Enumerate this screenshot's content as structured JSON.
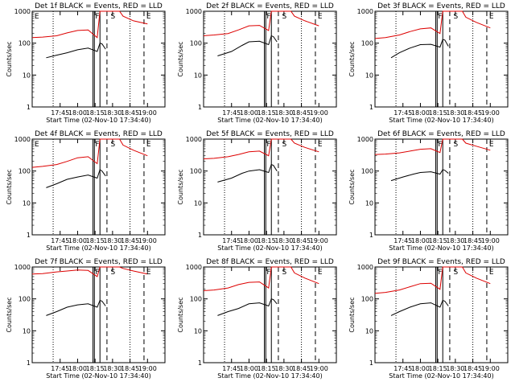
{
  "colors": {
    "events": "#000000",
    "lld": "#dd0000"
  },
  "chart_data": [
    {
      "type": "line",
      "title": "Det 1f BLACK = Events, RED = LLD",
      "xlabel": "Start Time (02-Nov-10 17:34:40)",
      "ylabel": "Counts/sec",
      "yscale": "log",
      "ylim": [
        1,
        1000
      ],
      "x_ticks": [
        "17:45",
        "18:00",
        "18:15",
        "18:30",
        "18:45",
        "19:00"
      ],
      "y_ticks": [
        "1",
        "10",
        "100",
        "1000"
      ],
      "flags": [
        "E",
        "F",
        "S",
        "E"
      ],
      "series": [
        {
          "name": "Events",
          "color": "#000000",
          "points": [
            [
              17.55,
              35
            ],
            [
              17.7,
              42
            ],
            [
              17.85,
              50
            ],
            [
              18.0,
              62
            ],
            [
              18.15,
              70
            ],
            [
              18.28,
              55
            ],
            [
              18.32,
              100
            ],
            [
              18.35,
              95
            ],
            [
              18.4,
              65
            ]
          ]
        },
        {
          "name": "LLD",
          "color": "#dd0000",
          "points": [
            [
              17.35,
              150
            ],
            [
              17.5,
              155
            ],
            [
              17.7,
              170
            ],
            [
              17.85,
              210
            ],
            [
              18.0,
              250
            ],
            [
              18.15,
              260
            ],
            [
              18.28,
              150
            ],
            [
              18.32,
              1000
            ],
            [
              18.6,
              1000
            ],
            [
              18.65,
              700
            ],
            [
              18.8,
              500
            ],
            [
              19.0,
              400
            ]
          ]
        }
      ]
    },
    {
      "type": "line",
      "title": "Det 2f BLACK = Events, RED = LLD",
      "xlabel": "Start Time (02-Nov-10 17:34:40)",
      "ylabel": "Counts/sec",
      "yscale": "log",
      "ylim": [
        1,
        1000
      ],
      "x_ticks": [
        "17:45",
        "18:00",
        "18:15",
        "18:30",
        "18:45",
        "19:00"
      ],
      "y_ticks": [
        "1",
        "10",
        "100",
        "1000"
      ],
      "flags": [
        "F",
        "S",
        "E"
      ],
      "series": [
        {
          "name": "Events",
          "color": "#000000",
          "points": [
            [
              17.55,
              40
            ],
            [
              17.75,
              55
            ],
            [
              17.9,
              85
            ],
            [
              18.0,
              110
            ],
            [
              18.15,
              115
            ],
            [
              18.28,
              90
            ],
            [
              18.32,
              170
            ],
            [
              18.35,
              160
            ],
            [
              18.4,
              110
            ]
          ]
        },
        {
          "name": "LLD",
          "color": "#dd0000",
          "points": [
            [
              17.35,
              170
            ],
            [
              17.5,
              180
            ],
            [
              17.7,
              200
            ],
            [
              17.85,
              260
            ],
            [
              18.0,
              350
            ],
            [
              18.15,
              360
            ],
            [
              18.28,
              250
            ],
            [
              18.32,
              1000
            ],
            [
              18.6,
              1000
            ],
            [
              18.65,
              700
            ],
            [
              18.8,
              500
            ],
            [
              19.0,
              350
            ]
          ]
        }
      ]
    },
    {
      "type": "line",
      "title": "Det 3f BLACK = Events, RED = LLD",
      "xlabel": "Start Time (02-Nov-10 17:34:40)",
      "ylabel": "Counts/sec",
      "yscale": "log",
      "ylim": [
        1,
        1000
      ],
      "x_ticks": [
        "17:45",
        "18:00",
        "18:15",
        "18:30",
        "18:45",
        "19:00"
      ],
      "y_ticks": [
        "1",
        "10",
        "100",
        "1000"
      ],
      "flags": [
        "F",
        "S",
        "E"
      ],
      "series": [
        {
          "name": "Events",
          "color": "#000000",
          "points": [
            [
              17.58,
              35
            ],
            [
              17.7,
              50
            ],
            [
              17.85,
              70
            ],
            [
              18.0,
              90
            ],
            [
              18.15,
              92
            ],
            [
              18.28,
              75
            ],
            [
              18.32,
              130
            ],
            [
              18.35,
              125
            ],
            [
              18.4,
              80
            ]
          ]
        },
        {
          "name": "LLD",
          "color": "#dd0000",
          "points": [
            [
              17.35,
              140
            ],
            [
              17.5,
              150
            ],
            [
              17.7,
              180
            ],
            [
              17.85,
              230
            ],
            [
              18.0,
              280
            ],
            [
              18.15,
              300
            ],
            [
              18.28,
              200
            ],
            [
              18.32,
              1000
            ],
            [
              18.6,
              1000
            ],
            [
              18.65,
              650
            ],
            [
              18.8,
              450
            ],
            [
              19.0,
              300
            ]
          ]
        }
      ]
    },
    {
      "type": "line",
      "title": "Det 4f BLACK = Events, RED = LLD",
      "xlabel": "Start Time (02-Nov-10 17:34:40)",
      "ylabel": "Counts/sec",
      "yscale": "log",
      "ylim": [
        1,
        1000
      ],
      "x_ticks": [
        "17:45",
        "18:00",
        "18:15",
        "18:30",
        "18:45",
        "19:00"
      ],
      "y_ticks": [
        "1",
        "10",
        "100",
        "1000"
      ],
      "flags": [
        "E",
        "F",
        "S",
        "E"
      ],
      "series": [
        {
          "name": "Events",
          "color": "#000000",
          "points": [
            [
              17.55,
              30
            ],
            [
              17.7,
              40
            ],
            [
              17.85,
              55
            ],
            [
              18.0,
              65
            ],
            [
              18.15,
              75
            ],
            [
              18.28,
              60
            ],
            [
              18.32,
              110
            ],
            [
              18.35,
              100
            ],
            [
              18.4,
              70
            ]
          ]
        },
        {
          "name": "LLD",
          "color": "#dd0000",
          "points": [
            [
              17.35,
              130
            ],
            [
              17.5,
              140
            ],
            [
              17.7,
              160
            ],
            [
              17.85,
              200
            ],
            [
              18.0,
              260
            ],
            [
              18.15,
              280
            ],
            [
              18.28,
              170
            ],
            [
              18.32,
              1000
            ],
            [
              18.6,
              1000
            ],
            [
              18.65,
              650
            ],
            [
              18.8,
              450
            ],
            [
              19.0,
              300
            ]
          ]
        }
      ]
    },
    {
      "type": "line",
      "title": "Det 5f BLACK = Events, RED = LLD",
      "xlabel": "Start Time (02-Nov-10 17:34:40)",
      "ylabel": "Counts/sec",
      "yscale": "log",
      "ylim": [
        1,
        1000
      ],
      "x_ticks": [
        "17:45",
        "18:00",
        "18:15",
        "18:30",
        "18:45",
        "19:00"
      ],
      "y_ticks": [
        "1",
        "10",
        "100",
        "1000"
      ],
      "flags": [
        "F",
        "S",
        "E"
      ],
      "series": [
        {
          "name": "Events",
          "color": "#000000",
          "points": [
            [
              17.55,
              45
            ],
            [
              17.75,
              60
            ],
            [
              17.9,
              85
            ],
            [
              18.0,
              100
            ],
            [
              18.15,
              110
            ],
            [
              18.28,
              90
            ],
            [
              18.32,
              160
            ],
            [
              18.35,
              150
            ],
            [
              18.4,
              100
            ]
          ]
        },
        {
          "name": "LLD",
          "color": "#dd0000",
          "points": [
            [
              17.35,
              240
            ],
            [
              17.5,
              250
            ],
            [
              17.7,
              280
            ],
            [
              17.85,
              330
            ],
            [
              18.0,
              400
            ],
            [
              18.15,
              420
            ],
            [
              18.28,
              300
            ],
            [
              18.32,
              1000
            ],
            [
              18.6,
              1000
            ],
            [
              18.65,
              750
            ],
            [
              18.8,
              550
            ],
            [
              19.0,
              400
            ]
          ]
        }
      ]
    },
    {
      "type": "line",
      "title": "Det 6f BLACK = Events, RED = LLD",
      "xlabel": "Start Time (02-Nov-10 17:34:40)",
      "ylabel": "Counts/sec",
      "yscale": "log",
      "ylim": [
        1,
        1000
      ],
      "x_ticks": [
        "17:45",
        "18:00",
        "18:15",
        "18:30",
        "18:45",
        "19:00"
      ],
      "y_ticks": [
        "1",
        "10",
        "100",
        "1000"
      ],
      "flags": [
        "F",
        "S",
        "E"
      ],
      "series": [
        {
          "name": "Events",
          "color": "#000000",
          "points": [
            [
              17.58,
              50
            ],
            [
              17.75,
              65
            ],
            [
              17.9,
              80
            ],
            [
              18.0,
              90
            ],
            [
              18.15,
              95
            ],
            [
              18.28,
              80
            ],
            [
              18.32,
              110
            ],
            [
              18.35,
              105
            ],
            [
              18.4,
              85
            ]
          ]
        },
        {
          "name": "LLD",
          "color": "#dd0000",
          "points": [
            [
              17.35,
              330
            ],
            [
              17.5,
              340
            ],
            [
              17.7,
              370
            ],
            [
              17.85,
              420
            ],
            [
              18.0,
              480
            ],
            [
              18.15,
              500
            ],
            [
              18.28,
              380
            ],
            [
              18.32,
              1000
            ],
            [
              18.6,
              1000
            ],
            [
              18.65,
              750
            ],
            [
              18.8,
              600
            ],
            [
              19.0,
              450
            ]
          ]
        }
      ]
    },
    {
      "type": "line",
      "title": "Det 7f BLACK = Events, RED = LLD",
      "xlabel": "Start Time (02-Nov-10 17:34:40)",
      "ylabel": "Counts/sec",
      "yscale": "log",
      "ylim": [
        1,
        1000
      ],
      "x_ticks": [
        "17:45",
        "18:00",
        "18:15",
        "18:30",
        "18:45",
        "19:00"
      ],
      "y_ticks": [
        "1",
        "10",
        "100",
        "1000"
      ],
      "flags": [
        "F",
        "S",
        "E"
      ],
      "series": [
        {
          "name": "Events",
          "color": "#000000",
          "points": [
            [
              17.55,
              30
            ],
            [
              17.7,
              40
            ],
            [
              17.85,
              55
            ],
            [
              18.0,
              65
            ],
            [
              18.15,
              70
            ],
            [
              18.28,
              55
            ],
            [
              18.32,
              90
            ],
            [
              18.35,
              85
            ],
            [
              18.4,
              60
            ]
          ]
        },
        {
          "name": "LLD",
          "color": "#dd0000",
          "points": [
            [
              17.35,
              600
            ],
            [
              17.5,
              620
            ],
            [
              17.7,
              700
            ],
            [
              17.85,
              750
            ],
            [
              18.0,
              800
            ],
            [
              18.15,
              780
            ],
            [
              18.28,
              500
            ],
            [
              18.32,
              1000
            ],
            [
              18.6,
              1000
            ],
            [
              18.65,
              900
            ],
            [
              18.8,
              750
            ],
            [
              19.0,
              600
            ]
          ]
        }
      ]
    },
    {
      "type": "line",
      "title": "Det 8f BLACK = Events, RED = LLD",
      "xlabel": "Start Time (02-Nov-10 17:34:40)",
      "ylabel": "Counts/sec",
      "yscale": "log",
      "ylim": [
        1,
        1000
      ],
      "x_ticks": [
        "17:45",
        "18:00",
        "18:15",
        "18:30",
        "18:45",
        "19:00"
      ],
      "y_ticks": [
        "1",
        "10",
        "100",
        "1000"
      ],
      "flags": [
        "F",
        "S",
        "E"
      ],
      "series": [
        {
          "name": "Events",
          "color": "#000000",
          "points": [
            [
              17.55,
              30
            ],
            [
              17.7,
              40
            ],
            [
              17.85,
              50
            ],
            [
              18.0,
              70
            ],
            [
              18.15,
              75
            ],
            [
              18.28,
              60
            ],
            [
              18.32,
              100
            ],
            [
              18.35,
              95
            ],
            [
              18.4,
              70
            ]
          ]
        },
        {
          "name": "LLD",
          "color": "#dd0000",
          "points": [
            [
              17.35,
              180
            ],
            [
              17.5,
              190
            ],
            [
              17.7,
              220
            ],
            [
              17.85,
              280
            ],
            [
              18.0,
              330
            ],
            [
              18.15,
              340
            ],
            [
              18.28,
              220
            ],
            [
              18.32,
              1000
            ],
            [
              18.6,
              1000
            ],
            [
              18.65,
              650
            ],
            [
              18.8,
              450
            ],
            [
              19.0,
              300
            ]
          ]
        }
      ]
    },
    {
      "type": "line",
      "title": "Det 9f BLACK = Events, RED = LLD",
      "xlabel": "Start Time (02-Nov-10 17:34:40)",
      "ylabel": "Counts/sec",
      "yscale": "log",
      "ylim": [
        1,
        1000
      ],
      "x_ticks": [
        "17:45",
        "18:00",
        "18:15",
        "18:30",
        "18:45",
        "19:00"
      ],
      "y_ticks": [
        "1",
        "10",
        "100",
        "1000"
      ],
      "flags": [
        "F",
        "S",
        "E"
      ],
      "series": [
        {
          "name": "Events",
          "color": "#000000",
          "points": [
            [
              17.58,
              30
            ],
            [
              17.7,
              40
            ],
            [
              17.85,
              55
            ],
            [
              18.0,
              70
            ],
            [
              18.15,
              75
            ],
            [
              18.28,
              55
            ],
            [
              18.32,
              90
            ],
            [
              18.35,
              85
            ],
            [
              18.4,
              60
            ]
          ]
        },
        {
          "name": "LLD",
          "color": "#dd0000",
          "points": [
            [
              17.35,
              150
            ],
            [
              17.5,
              160
            ],
            [
              17.7,
              190
            ],
            [
              17.85,
              240
            ],
            [
              18.0,
              300
            ],
            [
              18.15,
              310
            ],
            [
              18.28,
              200
            ],
            [
              18.32,
              1000
            ],
            [
              18.6,
              1000
            ],
            [
              18.65,
              650
            ],
            [
              18.8,
              450
            ],
            [
              19.0,
              300
            ]
          ]
        }
      ]
    }
  ]
}
